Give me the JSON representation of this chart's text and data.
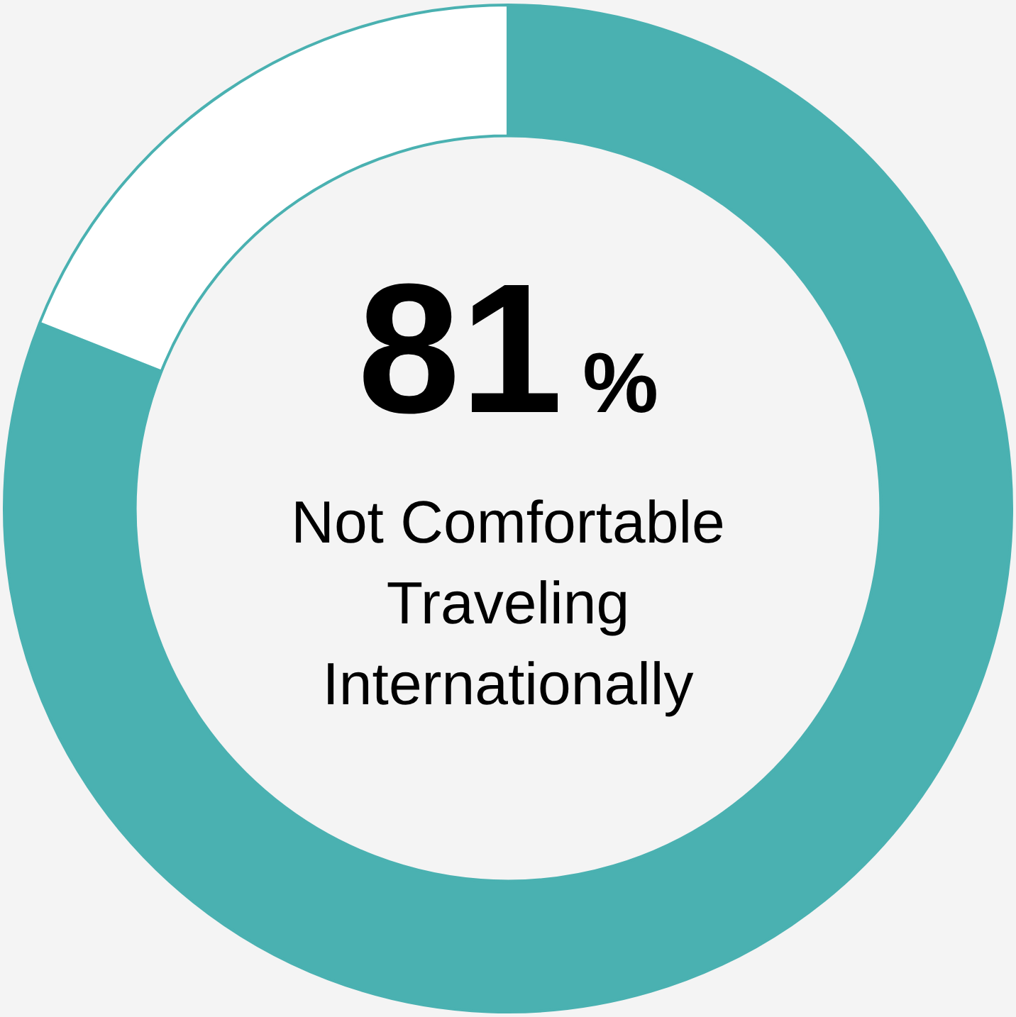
{
  "chart_data": {
    "type": "donut",
    "categories": [
      "Not Comfortable Traveling Internationally",
      null
    ],
    "values": [
      81,
      19
    ],
    "colors": [
      "#4ab1b1",
      "#ffffff"
    ],
    "value_labels": [
      "81%",
      null
    ],
    "legend": false
  }
}
